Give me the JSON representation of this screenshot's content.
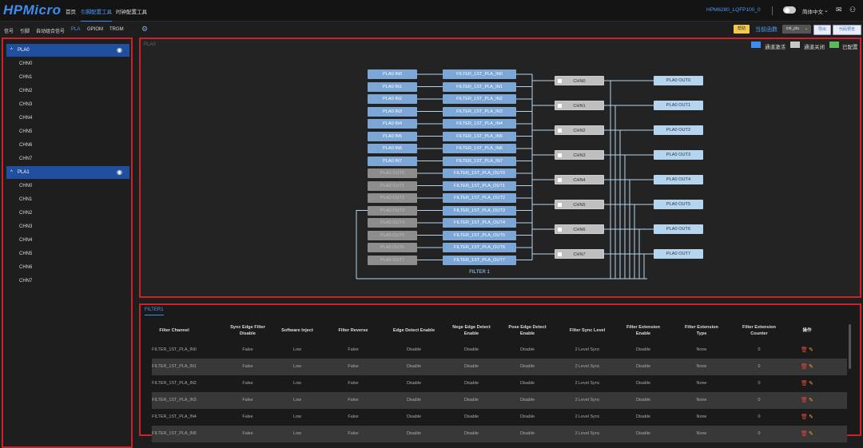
{
  "app": {
    "logo": "HPMicro",
    "nav": [
      "首页",
      "引脚配置工具",
      "时钟配置工具"
    ],
    "active_nav": 1,
    "chip": "HPM6280_LQFP100_0",
    "language": "简体中文",
    "icons": [
      "chevron-down-icon",
      "mail-icon",
      "user-icon"
    ]
  },
  "left": {
    "tabs": [
      "信号",
      "引脚",
      "自动组合信号",
      "PLA",
      "GPIOM",
      "TRGM"
    ],
    "active_tab": 3,
    "groups": [
      {
        "name": "PLA0",
        "children": [
          "CHN0",
          "CHN1",
          "CHN2",
          "CHN3",
          "CHN4",
          "CHN5",
          "CHN6",
          "CHN7"
        ]
      },
      {
        "name": "PLA1",
        "children": [
          "CHN0",
          "CHN1",
          "CHN2",
          "CHN3",
          "CHN4",
          "CHN5",
          "CHN6",
          "CHN7"
        ]
      }
    ]
  },
  "toolbar": {
    "help": "帮助",
    "current_function_label": "当前函数",
    "function_select": "init_pla",
    "export": "导出",
    "code_preview": "代码预览"
  },
  "diagram": {
    "label": "PLA0",
    "legend": [
      {
        "label": "通道激活",
        "color": "#3d8df0"
      },
      {
        "label": "通道关闭",
        "color": "#c8c8c8"
      },
      {
        "label": "已配置",
        "color": "#5cb85c"
      }
    ],
    "inputs": [
      {
        "label": "PLA0 IN0",
        "on": true
      },
      {
        "label": "PLA0 IN1",
        "on": true
      },
      {
        "label": "PLA0 IN2",
        "on": true
      },
      {
        "label": "PLA0 IN3",
        "on": true
      },
      {
        "label": "PLA0 IN4",
        "on": true
      },
      {
        "label": "PLA0 IN5",
        "on": true
      },
      {
        "label": "PLA0 IN6",
        "on": true
      },
      {
        "label": "PLA0 IN7",
        "on": true
      },
      {
        "label": "PLA0 OUT0",
        "on": false
      },
      {
        "label": "PLA0 OUT1",
        "on": false
      },
      {
        "label": "PLA0 OUT2",
        "on": false
      },
      {
        "label": "PLA0 OUT3",
        "on": false
      },
      {
        "label": "PLA0 OUT4",
        "on": false
      },
      {
        "label": "PLA0 OUT5",
        "on": false
      },
      {
        "label": "PLA0 OUT6",
        "on": false
      },
      {
        "label": "PLA0 OUT7",
        "on": false
      }
    ],
    "filters": [
      "FILTER_1ST_PLA_IN0",
      "FILTER_1ST_PLA_IN1",
      "FILTER_1ST_PLA_IN2",
      "FILTER_1ST_PLA_IN3",
      "FILTER_1ST_PLA_IN4",
      "FILTER_1ST_PLA_IN5",
      "FILTER_1ST_PLA_IN6",
      "FILTER_1ST_PLA_IN7",
      "FILTER_1ST_PLA_OUT0",
      "FILTER_1ST_PLA_OUT1",
      "FILTER_1ST_PLA_OUT2",
      "FILTER_1ST_PLA_OUT3",
      "FILTER_1ST_PLA_OUT4",
      "FILTER_1ST_PLA_OUT5",
      "FILTER_1ST_PLA_OUT6",
      "FILTER_1ST_PLA_OUT7"
    ],
    "filter_title": "FILTER 1",
    "channels": [
      "CHN0",
      "CHN1",
      "CHN2",
      "CHN3",
      "CHN4",
      "CHN5",
      "CHN6",
      "CHN7"
    ],
    "outputs": [
      "PLA0 OUT0",
      "PLA0 OUT1",
      "PLA0 OUT2",
      "PLA0 OUT3",
      "PLA0 OUT4",
      "PLA0 OUT5",
      "PLA0 OUT6",
      "PLA0 OUT7"
    ]
  },
  "table": {
    "tab": "FILTER1",
    "headers": [
      "Filter Channel",
      "Sync Edge Filter Disable",
      "Software Inject",
      "Filter Reverse",
      "Edge Detect Enable",
      "Nege Edge Detect Enable",
      "Pose Edge Detect Enable",
      "Filter Sync Level",
      "Filter Extension Enable",
      "Filter Extension Type",
      "Filter Extension Counter",
      "操作"
    ],
    "rows": [
      [
        "FILTER_1ST_PLA_IN0",
        "False",
        "Low",
        "False",
        "Disable",
        "Disable",
        "Disable",
        "2 Level Sync",
        "Disable",
        "None",
        "0"
      ],
      [
        "FILTER_1ST_PLA_IN1",
        "False",
        "Low",
        "False",
        "Disable",
        "Disable",
        "Disable",
        "2 Level Sync",
        "Disable",
        "None",
        "0"
      ],
      [
        "FILTER_1ST_PLA_IN2",
        "False",
        "Low",
        "False",
        "Disable",
        "Disable",
        "Disable",
        "2 Level Sync",
        "Disable",
        "None",
        "0"
      ],
      [
        "FILTER_1ST_PLA_IN3",
        "False",
        "Low",
        "False",
        "Disable",
        "Disable",
        "Disable",
        "2 Level Sync",
        "Disable",
        "None",
        "0"
      ],
      [
        "FILTER_1ST_PLA_IN4",
        "False",
        "Low",
        "False",
        "Disable",
        "Disable",
        "Disable",
        "2 Level Sync",
        "Disable",
        "None",
        "0"
      ],
      [
        "FILTER_1ST_PLA_IN5",
        "False",
        "Low",
        "False",
        "Disable",
        "Disable",
        "Disable",
        "2 Level Sync",
        "Disable",
        "None",
        "0"
      ]
    ],
    "row_actions": [
      "delete-icon",
      "edit-icon"
    ]
  }
}
